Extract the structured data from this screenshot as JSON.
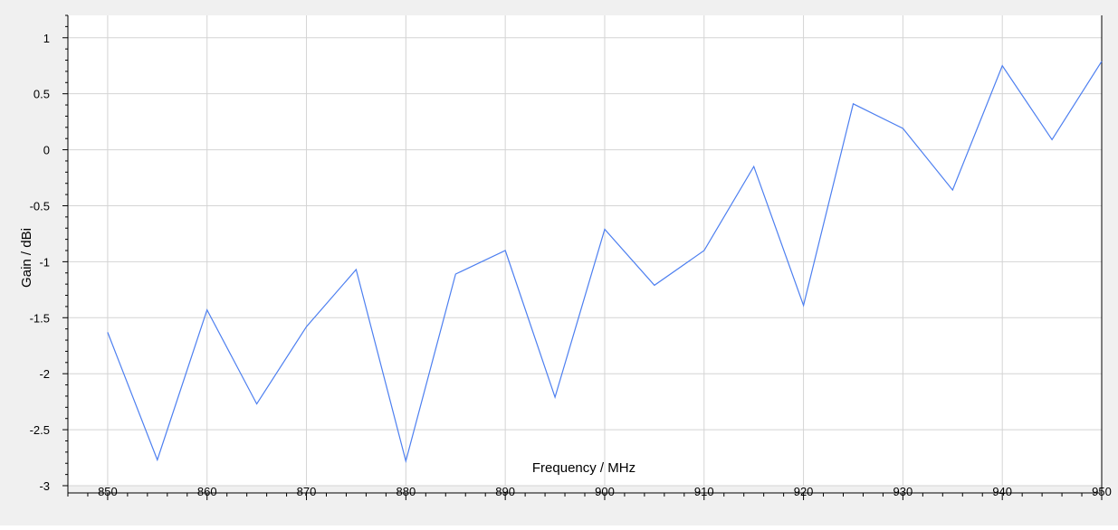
{
  "chart_data": {
    "type": "line",
    "xlabel": "Frequency / MHz",
    "ylabel": "Gain / dBi",
    "xlim": [
      850,
      950
    ],
    "ylim": [
      -3,
      1.2
    ],
    "xticks": [
      850,
      860,
      870,
      880,
      890,
      900,
      910,
      920,
      930,
      940,
      950
    ],
    "yticks": [
      -3,
      -2.5,
      -2,
      -1.5,
      -1,
      -0.5,
      0,
      0.5,
      1
    ],
    "grid": true,
    "series": [
      {
        "color": "#4d7ff0",
        "x": [
          850,
          855,
          860,
          865,
          870,
          875,
          880,
          885,
          890,
          895,
          900,
          905,
          910,
          915,
          920,
          925,
          930,
          935,
          940,
          945,
          950
        ],
        "y": [
          -1.63,
          -2.77,
          -1.43,
          -2.27,
          -1.58,
          -1.07,
          -2.78,
          -1.11,
          -0.9,
          -2.21,
          -0.71,
          -1.21,
          -0.9,
          -0.15,
          -1.39,
          0.41,
          0.19,
          -0.36,
          0.75,
          0.09,
          0.79
        ]
      }
    ]
  }
}
